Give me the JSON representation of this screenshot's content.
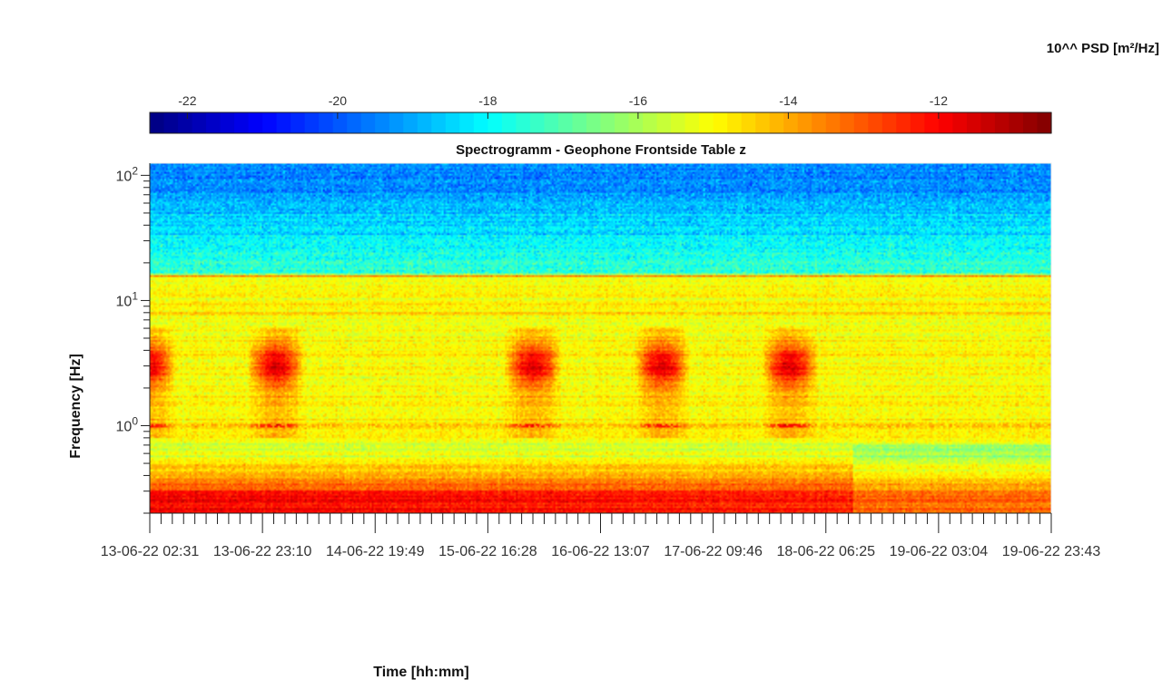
{
  "chart_data": {
    "type": "heatmap",
    "title": "Spectrogramm - Geophone Frontside Table z",
    "xlabel": "Time [hh:mm]",
    "ylabel": "Frequency [Hz]",
    "yscale": "log",
    "ylim": [
      0.2,
      125
    ],
    "y_ticks": [
      {
        "value": 1,
        "base": "10",
        "exp": "0"
      },
      {
        "value": 10,
        "base": "10",
        "exp": "1"
      },
      {
        "value": 100,
        "base": "10",
        "exp": "2"
      }
    ],
    "x_tick_labels": [
      "13-06-22 02:31",
      "13-06-22 23:10",
      "14-06-22 19:49",
      "15-06-22 16:28",
      "16-06-22 13:07",
      "17-06-22 09:46",
      "18-06-22 06:25",
      "19-06-22 03:04",
      "19-06-22 23:43"
    ],
    "colorbar": {
      "label": "10^^ PSD [m²/Hz]",
      "colormap": "jet",
      "range": [
        -22.5,
        -10.5
      ],
      "tick_values": [
        -22,
        -20,
        -18,
        -16,
        -14,
        -12
      ],
      "tick_labels": [
        "-22",
        "-20",
        "-18",
        "-16",
        "-14",
        "-12"
      ]
    },
    "features": {
      "day_activity_bursts_center_hz": 3,
      "line_at_hz": 1,
      "band_edge_hz": 16,
      "background_low_freq_psd": -12,
      "background_mid_freq_psd": -15,
      "background_high_freq_psd": -19.5
    }
  }
}
